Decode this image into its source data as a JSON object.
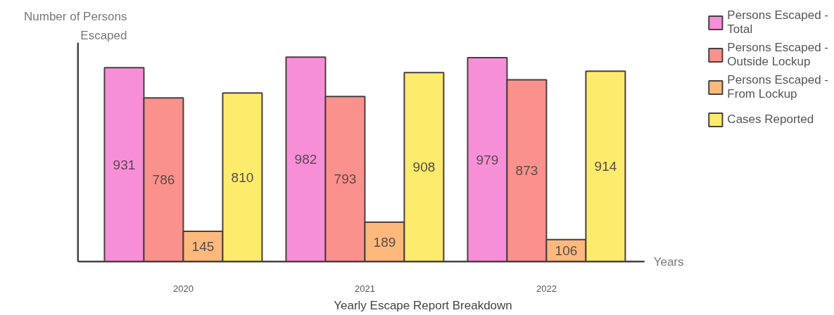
{
  "chart_data": {
    "type": "bar",
    "title": "Yearly Escape Report Breakdown",
    "xlabel": "Years",
    "ylabel": "Number of Persons Escaped",
    "categories": [
      "2020",
      "2021",
      "2022"
    ],
    "series": [
      {
        "name": "Persons Escaped - Total",
        "color": "#f78fd8",
        "values": [
          931,
          982,
          979
        ]
      },
      {
        "name": "Persons Escaped - Outside Lockup",
        "color": "#fb918c",
        "values": [
          786,
          793,
          873
        ]
      },
      {
        "name": "Persons Escaped - From Lockup",
        "color": "#fdb97c",
        "values": [
          145,
          189,
          106
        ]
      },
      {
        "name": "Cases Reported",
        "color": "#fdeb6c",
        "values": [
          810,
          908,
          914
        ]
      }
    ],
    "data_labels": true,
    "legend": "right",
    "grid": false
  }
}
